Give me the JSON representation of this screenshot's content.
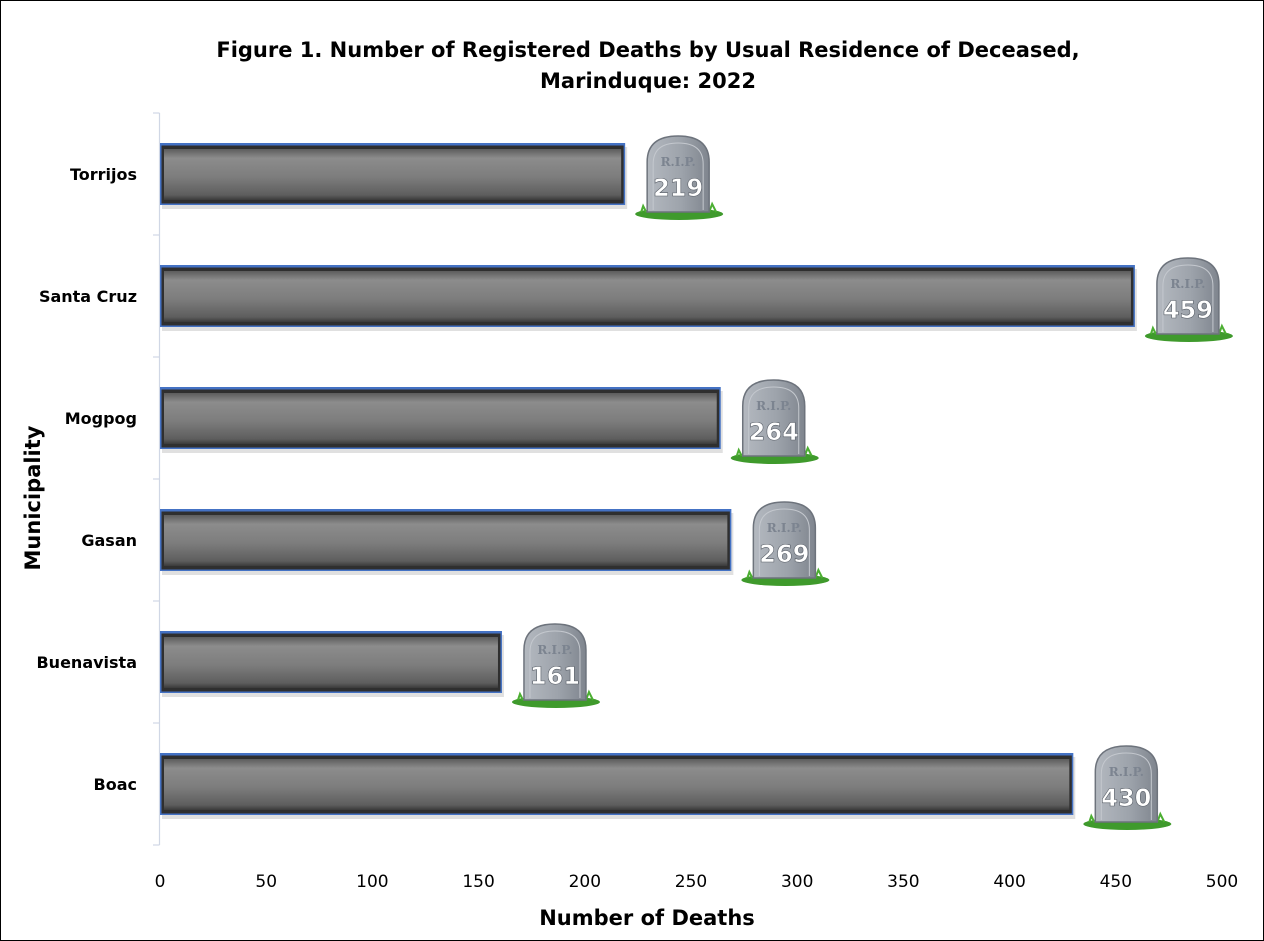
{
  "chart_data": {
    "type": "bar",
    "orientation": "horizontal",
    "title": "Figure 1. Number of Registered Deaths by Usual Residence of Deceased,",
    "title_line2": "Marinduque: 2022",
    "xlabel": "Number of Deaths",
    "ylabel": "Municipality",
    "categories": [
      "Torrijos",
      "Santa Cruz",
      "Mogpog",
      "Gasan",
      "Buenavista",
      "Boac"
    ],
    "values": [
      219,
      459,
      264,
      269,
      161,
      430
    ],
    "value_labels": [
      "219",
      "459",
      "264",
      "269",
      "161",
      "430"
    ],
    "marker_text": "R.I.P.",
    "xlim": [
      0,
      500
    ],
    "xticks": [
      "0",
      "50",
      "100",
      "150",
      "200",
      "250",
      "300",
      "350",
      "400",
      "450",
      "500"
    ],
    "xtick_values": [
      0,
      50,
      100,
      150,
      200,
      250,
      300,
      350,
      400,
      450,
      500
    ],
    "grid": false,
    "legend": "none",
    "colors": {
      "bar_fill": "#7f7f7f",
      "bar_edge": "#4472c4",
      "stone": "#a3a9b1",
      "grass": "#3f9a2c"
    }
  }
}
